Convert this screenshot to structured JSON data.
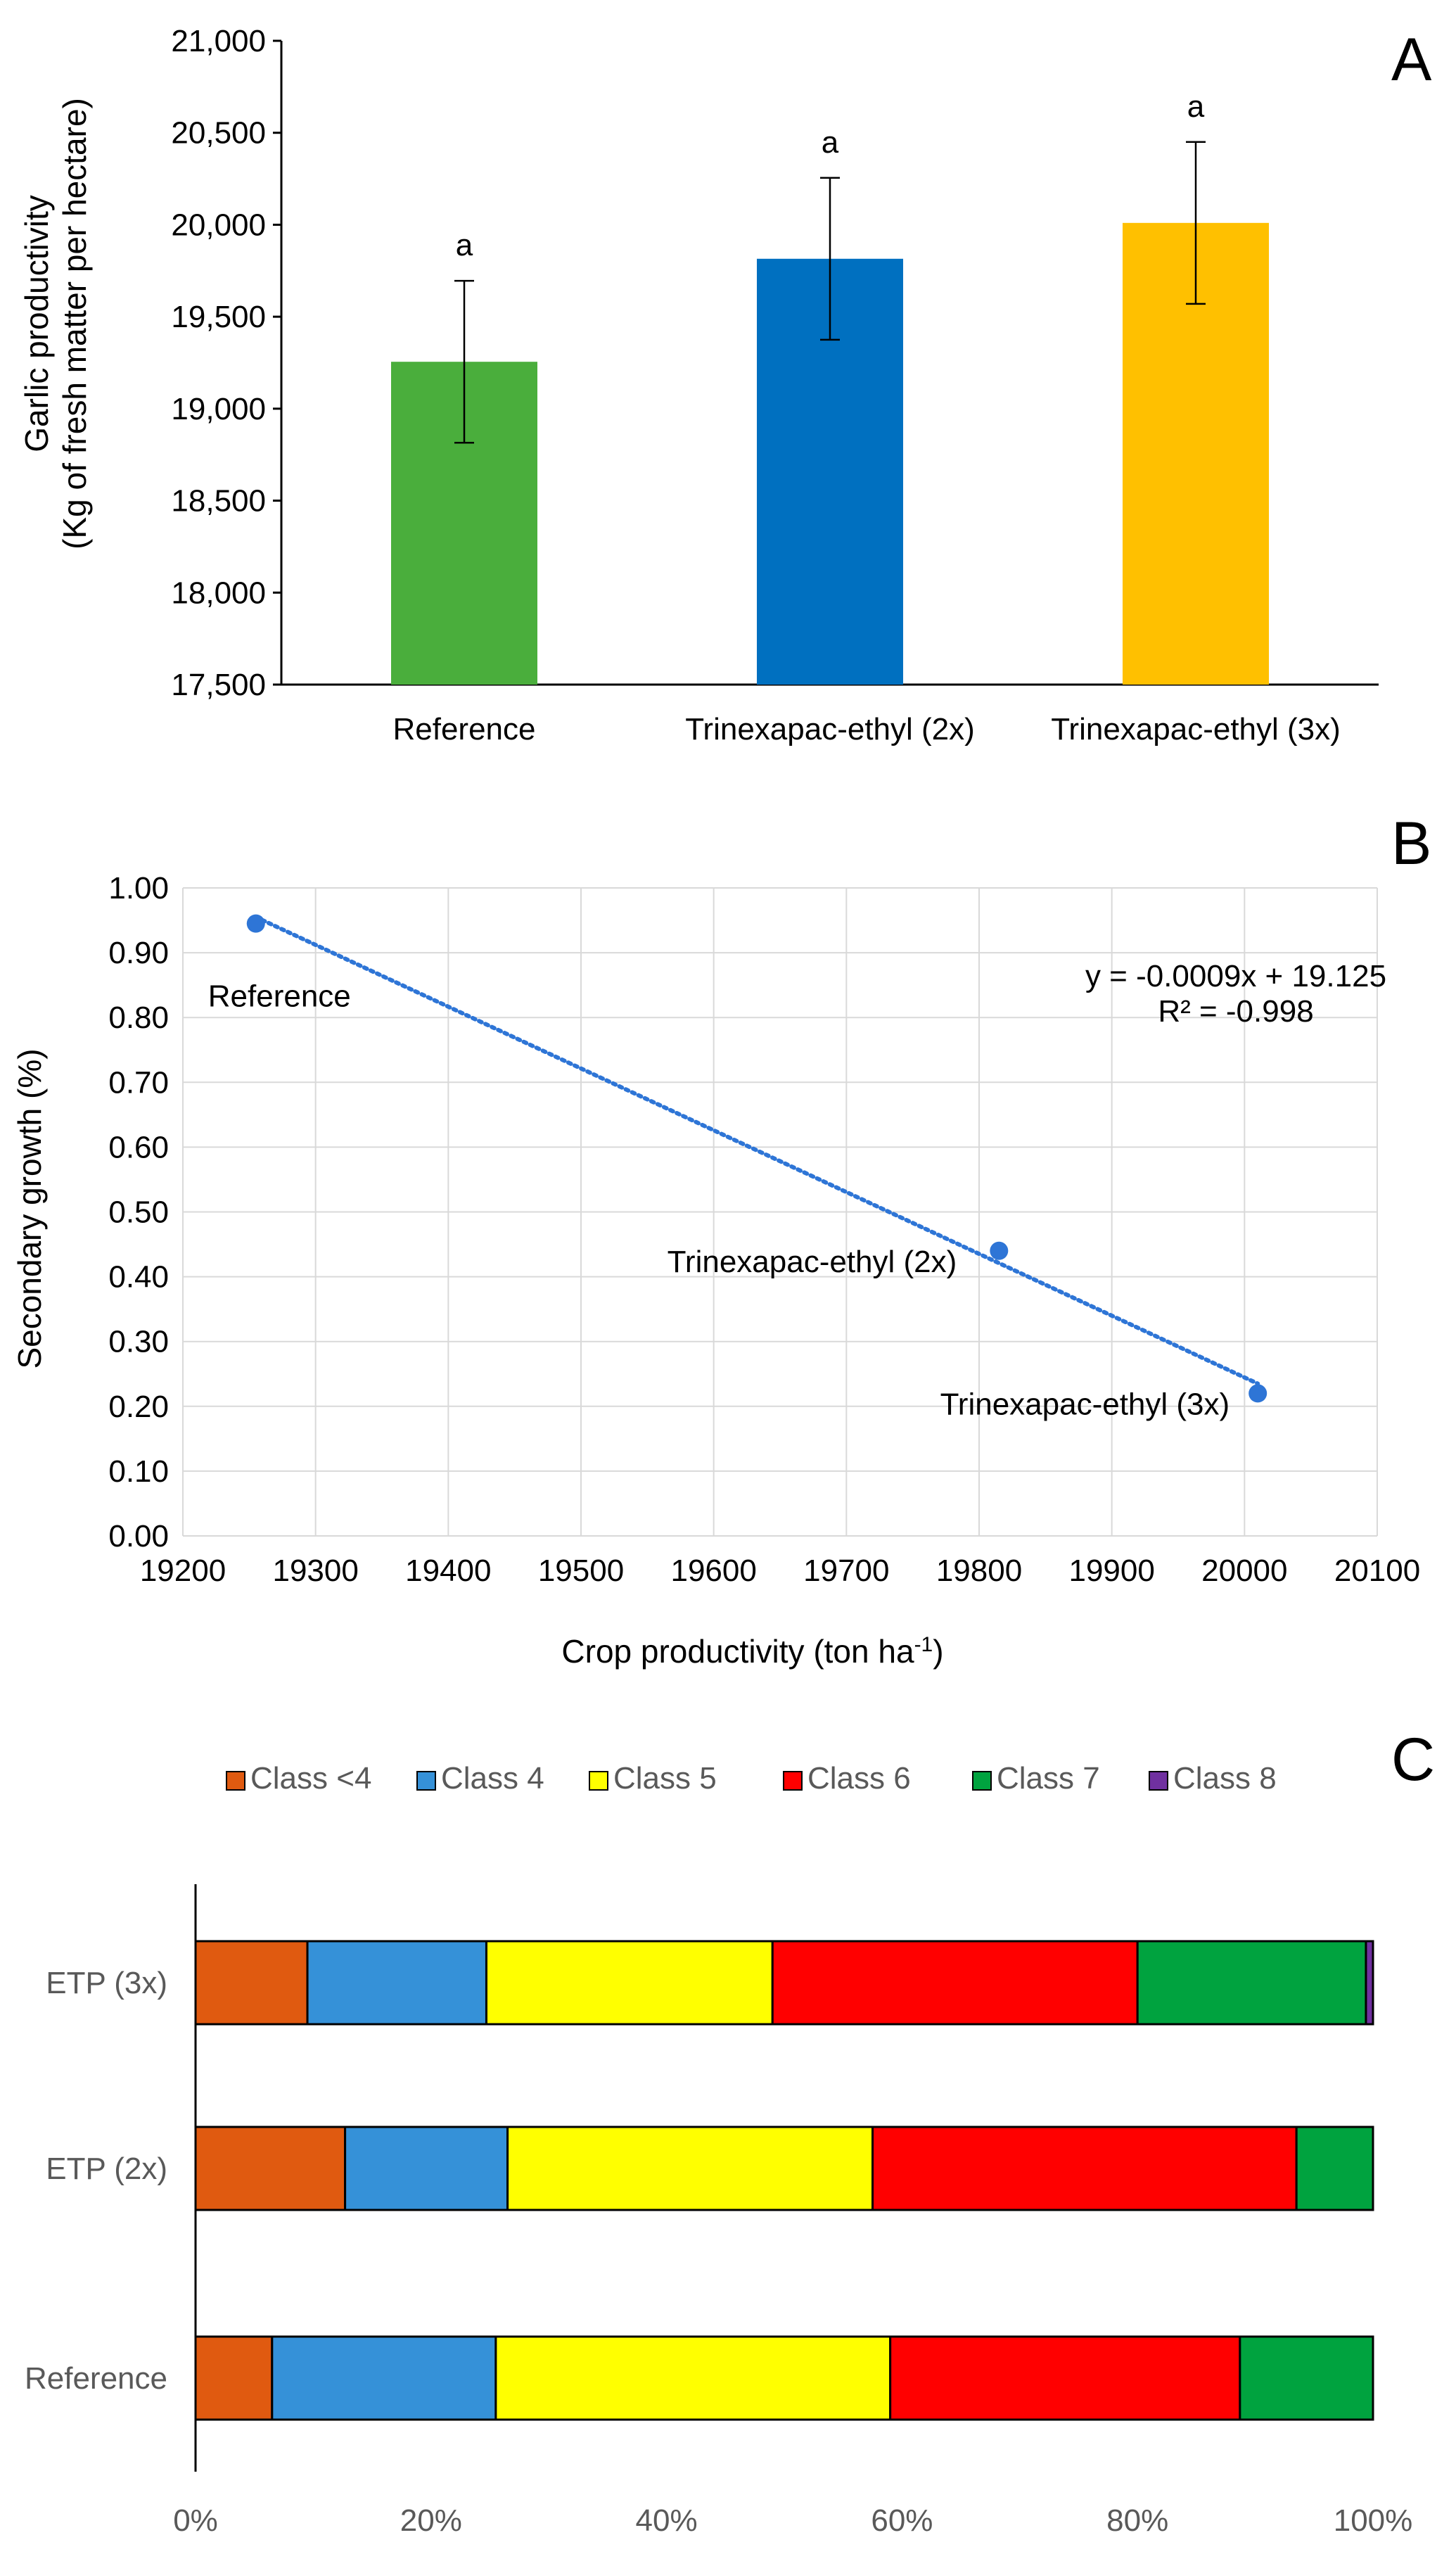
{
  "chart_data": [
    {
      "panel": "A",
      "type": "bar",
      "title": "",
      "xlabel": "",
      "ylabel_lines": [
        "Garlic productivity",
        "(Kg of fresh matter per hectare)"
      ],
      "ylim": [
        17500,
        21000
      ],
      "yticks": [
        17500,
        18000,
        18500,
        19000,
        19500,
        20000,
        20500,
        21000
      ],
      "ytick_labels": [
        "17,500",
        "18,000",
        "18,500",
        "19,000",
        "19,500",
        "20,000",
        "20,500",
        "21,000"
      ],
      "categories": [
        "Reference",
        "Trinexapac-ethyl (2x)",
        "Trinexapac-ethyl  (3x)"
      ],
      "values": [
        19255,
        19815,
        20010
      ],
      "errors": [
        440,
        440,
        440
      ],
      "letters": [
        "a",
        "a",
        "a"
      ],
      "colors": [
        "#4aae3c",
        "#0070c0",
        "#ffc000"
      ],
      "grid": false
    },
    {
      "panel": "B",
      "type": "scatter",
      "xlabel_main": "Crop productivity (ton ha",
      "xlabel_sup": "-1",
      "xlabel_end": ")",
      "ylabel": "Secondary growth (%)",
      "xlim": [
        19200,
        20100
      ],
      "ylim": [
        0,
        1
      ],
      "xticks": [
        19200,
        19300,
        19400,
        19500,
        19600,
        19700,
        19800,
        19900,
        20000,
        20100
      ],
      "xtick_labels": [
        "19200",
        "19300",
        "19400",
        "19500",
        "19600",
        "19700",
        "19800",
        "19900",
        "20000",
        "20100"
      ],
      "yticks": [
        0,
        0.1,
        0.2,
        0.3,
        0.4,
        0.5,
        0.6,
        0.7,
        0.8,
        0.9,
        1.0
      ],
      "ytick_labels": [
        "0.00",
        "0.10",
        "0.20",
        "0.30",
        "0.40",
        "0.50",
        "0.60",
        "0.70",
        "0.80",
        "0.90",
        "1.00"
      ],
      "points": [
        {
          "label": "Reference",
          "x": 19255,
          "y": 0.945
        },
        {
          "label": "Trinexapac-ethyl (2x)",
          "x": 19815,
          "y": 0.44
        },
        {
          "label": "Trinexapac-ethyl (3x)",
          "x": 20010,
          "y": 0.22
        }
      ],
      "trendline": {
        "x": [
          19255,
          20010
        ],
        "y": [
          0.955,
          0.235
        ],
        "style": "dotted"
      },
      "equation": "y = -0.0009x + 19.125",
      "r2": "R² = -0.998",
      "point_color": "#2e75d6",
      "grid": true
    },
    {
      "panel": "C",
      "type": "bar",
      "orientation": "horizontal",
      "stacked": "percent",
      "xlim": [
        0,
        100
      ],
      "xticks": [
        0,
        20,
        40,
        60,
        80,
        100
      ],
      "xtick_labels": [
        "0%",
        "20%",
        "40%",
        "60%",
        "80%",
        "100%"
      ],
      "categories": [
        "ETP (3x)",
        "ETP (2x)",
        "Reference"
      ],
      "series": [
        {
          "name": "Class <4",
          "color": "#e05a10",
          "values": [
            9.5,
            12.7,
            6.5
          ]
        },
        {
          "name": "Class 4",
          "color": "#3591d8",
          "values": [
            15.2,
            13.8,
            19.0
          ]
        },
        {
          "name": "Class 5",
          "color": "#ffff00",
          "values": [
            24.3,
            31.0,
            33.5
          ]
        },
        {
          "name": "Class 6",
          "color": "#ff0000",
          "values": [
            31.0,
            36.0,
            29.7
          ]
        },
        {
          "name": "Class 7",
          "color": "#00a33f",
          "values": [
            19.4,
            6.5,
            11.3
          ]
        },
        {
          "name": "Class 8",
          "color": "#7030a0",
          "values": [
            0.6,
            0.0,
            0.0
          ]
        }
      ],
      "legend_position": "top"
    }
  ]
}
